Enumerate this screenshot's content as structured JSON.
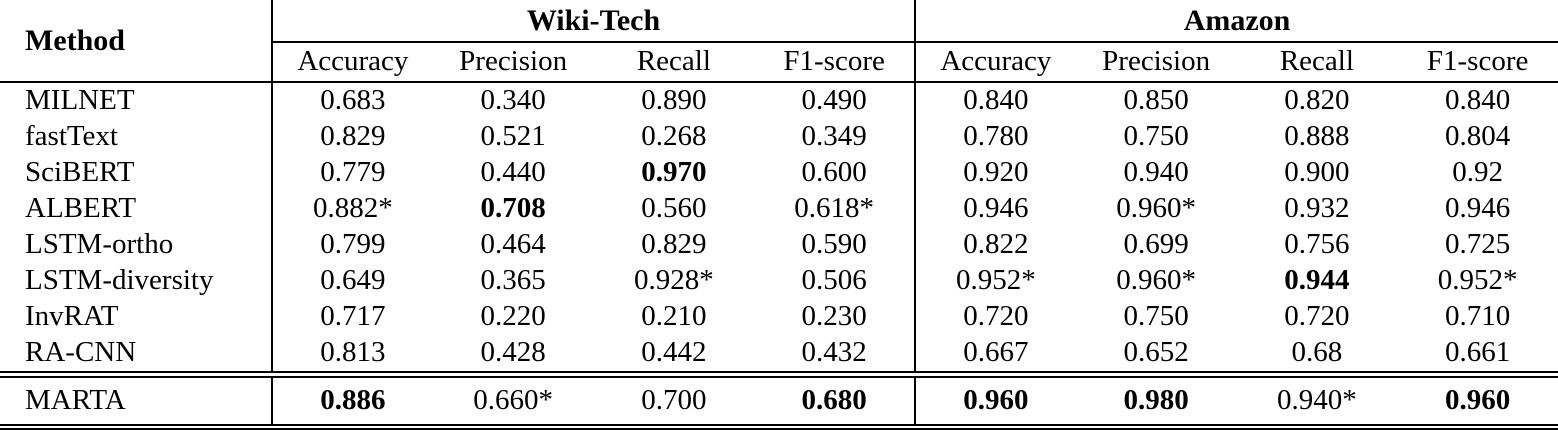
{
  "table": {
    "method_header": "Method",
    "groups": [
      {
        "label": "Wiki-Tech",
        "columns": [
          "Accuracy",
          "Precision",
          "Recall",
          "F1-score"
        ]
      },
      {
        "label": "Amazon",
        "columns": [
          "Accuracy",
          "Precision",
          "Recall",
          "F1-score"
        ]
      }
    ],
    "rows": [
      {
        "method": "MILNET",
        "cells": [
          {
            "t": "0.683"
          },
          {
            "t": "0.340"
          },
          {
            "t": "0.890"
          },
          {
            "t": "0.490"
          },
          {
            "t": "0.840"
          },
          {
            "t": "0.850"
          },
          {
            "t": "0.820"
          },
          {
            "t": "0.840"
          }
        ]
      },
      {
        "method": "fastText",
        "cells": [
          {
            "t": "0.829"
          },
          {
            "t": "0.521"
          },
          {
            "t": "0.268"
          },
          {
            "t": "0.349"
          },
          {
            "t": "0.780"
          },
          {
            "t": "0.750"
          },
          {
            "t": "0.888"
          },
          {
            "t": "0.804"
          }
        ]
      },
      {
        "method": "SciBERT",
        "cells": [
          {
            "t": "0.779"
          },
          {
            "t": "0.440"
          },
          {
            "t": "0.970",
            "b": true
          },
          {
            "t": "0.600"
          },
          {
            "t": "0.920"
          },
          {
            "t": "0.940"
          },
          {
            "t": "0.900"
          },
          {
            "t": "0.92"
          }
        ]
      },
      {
        "method": "ALBERT",
        "cells": [
          {
            "t": "0.882*"
          },
          {
            "t": "0.708",
            "b": true
          },
          {
            "t": "0.560"
          },
          {
            "t": "0.618*"
          },
          {
            "t": "0.946"
          },
          {
            "t": "0.960*"
          },
          {
            "t": "0.932"
          },
          {
            "t": "0.946"
          }
        ]
      },
      {
        "method": "LSTM-ortho",
        "cells": [
          {
            "t": "0.799"
          },
          {
            "t": "0.464"
          },
          {
            "t": "0.829"
          },
          {
            "t": "0.590"
          },
          {
            "t": "0.822"
          },
          {
            "t": "0.699"
          },
          {
            "t": "0.756"
          },
          {
            "t": "0.725"
          }
        ]
      },
      {
        "method": "LSTM-diversity",
        "cells": [
          {
            "t": "0.649"
          },
          {
            "t": "0.365"
          },
          {
            "t": "0.928*"
          },
          {
            "t": "0.506"
          },
          {
            "t": "0.952*"
          },
          {
            "t": "0.960*"
          },
          {
            "t": "0.944",
            "b": true
          },
          {
            "t": "0.952*"
          }
        ]
      },
      {
        "method": "InvRAT",
        "cells": [
          {
            "t": "0.717"
          },
          {
            "t": "0.220"
          },
          {
            "t": "0.210"
          },
          {
            "t": "0.230"
          },
          {
            "t": "0.720"
          },
          {
            "t": "0.750"
          },
          {
            "t": "0.720"
          },
          {
            "t": "0.710"
          }
        ]
      },
      {
        "method": "RA-CNN",
        "cells": [
          {
            "t": "0.813"
          },
          {
            "t": "0.428"
          },
          {
            "t": "0.442"
          },
          {
            "t": "0.432"
          },
          {
            "t": "0.667"
          },
          {
            "t": "0.652"
          },
          {
            "t": "0.68"
          },
          {
            "t": "0.661"
          }
        ]
      },
      {
        "method": "MARTA",
        "final": true,
        "cells": [
          {
            "t": "0.886",
            "b": true
          },
          {
            "t": "0.660*"
          },
          {
            "t": "0.700"
          },
          {
            "t": "0.680",
            "b": true
          },
          {
            "t": "0.960",
            "b": true
          },
          {
            "t": "0.980",
            "b": true
          },
          {
            "t": "0.940*"
          },
          {
            "t": "0.960",
            "b": true
          }
        ]
      }
    ]
  }
}
